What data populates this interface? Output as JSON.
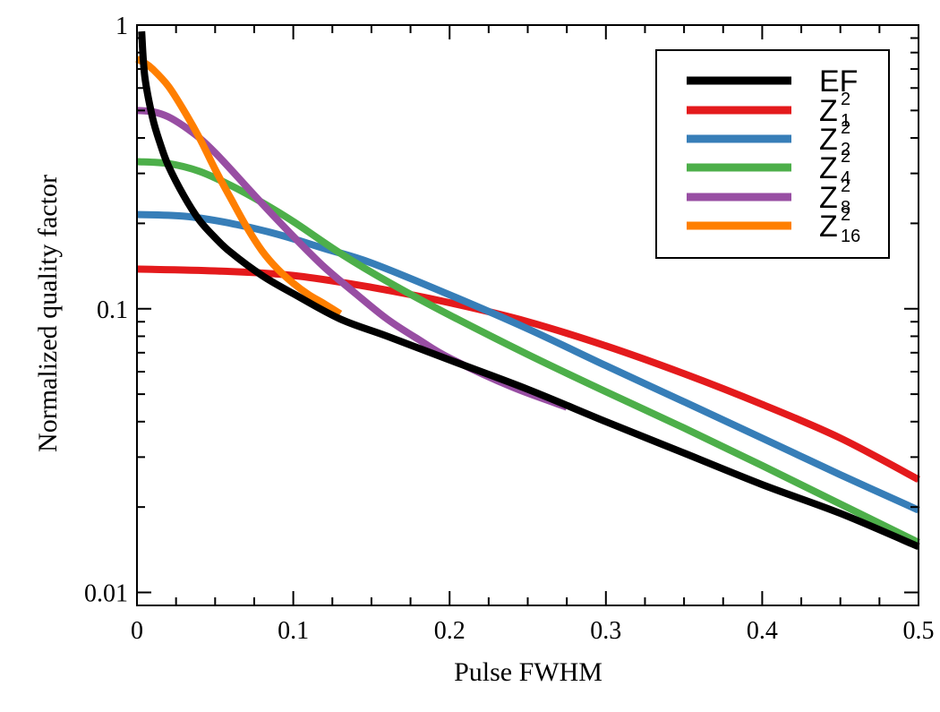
{
  "chart_data": {
    "type": "line",
    "xlabel": "Pulse FWHM",
    "ylabel": "Normalized quality factor",
    "xlim": [
      0,
      0.5
    ],
    "ylim": [
      0.009,
      1
    ],
    "yscale": "log",
    "grid": false,
    "legend_position": "top-right",
    "x_ticks": [
      {
        "value": 0,
        "label": "0"
      },
      {
        "value": 0.1,
        "label": "0.1"
      },
      {
        "value": 0.2,
        "label": "0.2"
      },
      {
        "value": 0.3,
        "label": "0.3"
      },
      {
        "value": 0.4,
        "label": "0.4"
      },
      {
        "value": 0.5,
        "label": "0.5"
      }
    ],
    "y_ticks": [
      {
        "value": 0.01,
        "label": "0.01"
      },
      {
        "value": 0.1,
        "label": "0.1"
      },
      {
        "value": 1,
        "label": "1"
      }
    ],
    "series": [
      {
        "name": "EF",
        "base": "EF",
        "sup": "",
        "sub": "",
        "color": "#000000",
        "x": [
          0.003,
          0.005,
          0.01,
          0.015,
          0.02,
          0.03,
          0.04,
          0.05,
          0.06,
          0.08,
          0.1,
          0.13,
          0.16,
          0.2,
          0.25,
          0.3,
          0.35,
          0.4,
          0.45,
          0.5
        ],
        "y": [
          0.95,
          0.66,
          0.47,
          0.38,
          0.32,
          0.25,
          0.205,
          0.178,
          0.158,
          0.131,
          0.113,
          0.092,
          0.08,
          0.066,
          0.052,
          0.04,
          0.031,
          0.024,
          0.019,
          0.0145
        ]
      },
      {
        "name": "Z₁²",
        "base": "Z",
        "sup": "2",
        "sub": "1",
        "color": "#e41a1c",
        "x": [
          0,
          0.05,
          0.1,
          0.15,
          0.2,
          0.25,
          0.3,
          0.35,
          0.4,
          0.45,
          0.5
        ],
        "y": [
          0.138,
          0.136,
          0.131,
          0.119,
          0.105,
          0.09,
          0.074,
          0.059,
          0.046,
          0.035,
          0.025
        ]
      },
      {
        "name": "Z₂²",
        "base": "Z",
        "sup": "2",
        "sub": "2",
        "color": "#377eb8",
        "x": [
          0,
          0.03,
          0.06,
          0.09,
          0.12,
          0.15,
          0.2,
          0.25,
          0.3,
          0.35,
          0.4,
          0.45,
          0.5
        ],
        "y": [
          0.215,
          0.212,
          0.2,
          0.183,
          0.163,
          0.145,
          0.112,
          0.085,
          0.063,
          0.047,
          0.035,
          0.026,
          0.0195
        ]
      },
      {
        "name": "Z₄²",
        "base": "Z",
        "sup": "2",
        "sub": "4",
        "color": "#4daf4a",
        "x": [
          0,
          0.02,
          0.04,
          0.06,
          0.08,
          0.1,
          0.13,
          0.16,
          0.2,
          0.25,
          0.3,
          0.35,
          0.4,
          0.45,
          0.5
        ],
        "y": [
          0.33,
          0.325,
          0.305,
          0.272,
          0.237,
          0.203,
          0.157,
          0.125,
          0.095,
          0.069,
          0.051,
          0.038,
          0.028,
          0.0205,
          0.015
        ]
      },
      {
        "name": "Z₈²",
        "base": "Z",
        "sup": "2",
        "sub": "8",
        "color": "#984ea3",
        "x": [
          0,
          0.01,
          0.02,
          0.03,
          0.04,
          0.05,
          0.06,
          0.08,
          0.1,
          0.12,
          0.14,
          0.16,
          0.18,
          0.2,
          0.24,
          0.275
        ],
        "y": [
          0.5,
          0.495,
          0.475,
          0.44,
          0.4,
          0.355,
          0.31,
          0.235,
          0.18,
          0.14,
          0.113,
          0.092,
          0.078,
          0.067,
          0.053,
          0.045
        ]
      },
      {
        "name": "Z₁₆²",
        "base": "Z",
        "sup": "2",
        "sub": "16",
        "color": "#ff7f00",
        "x": [
          0,
          0.005,
          0.01,
          0.02,
          0.03,
          0.04,
          0.05,
          0.06,
          0.07,
          0.08,
          0.09,
          0.1,
          0.11,
          0.12,
          0.13
        ],
        "y": [
          0.76,
          0.735,
          0.7,
          0.61,
          0.5,
          0.4,
          0.31,
          0.245,
          0.195,
          0.16,
          0.138,
          0.123,
          0.112,
          0.104,
          0.096
        ]
      }
    ]
  }
}
